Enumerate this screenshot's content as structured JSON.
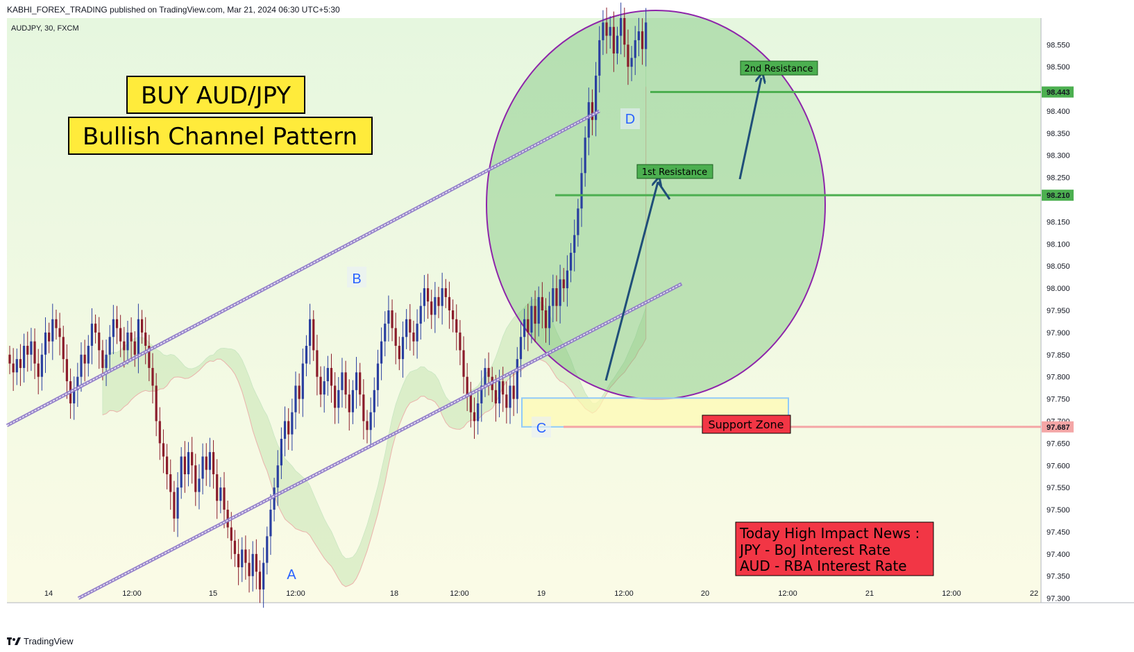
{
  "header": {
    "published": "KABHI_FOREX_TRADING published on TradingView.com, Mar 21, 2024 06:30 UTC+5:30",
    "symbol": "AUDJPY, 30, FXCM"
  },
  "footer": {
    "brand": "TradingView",
    "logo": "tradingview-logo-icon"
  },
  "colors": {
    "up": "#2a3fa0",
    "down": "#8b1c2b",
    "support": "#f4a6a6",
    "resistance": "#4caf50",
    "ellipse_fill": "#66bb6a",
    "ellipse_stroke": "#8e24aa",
    "channel": "#8f7ac9",
    "arrow": "#1f4e79",
    "label_yellow": "#ffeb3b",
    "label_red": "#f23645"
  },
  "chart_data": {
    "type": "candlestick",
    "symbol": "AUDJPY",
    "timeframe": "30",
    "y_range": [
      97.29,
      98.61
    ],
    "y_ticks": [
      "98.550",
      "98.500",
      "98.400",
      "98.350",
      "98.300",
      "98.250",
      "98.150",
      "98.100",
      "98.050",
      "98.000",
      "97.950",
      "97.900",
      "97.850",
      "97.800",
      "97.750",
      "97.700",
      "97.650",
      "97.600",
      "97.550",
      "97.500",
      "97.450",
      "97.400",
      "97.350",
      "97.300"
    ],
    "x_ticks": [
      "14",
      "12:00",
      "15",
      "12:00",
      "18",
      "12:00",
      "19",
      "12:00",
      "20",
      "12:00",
      "21",
      "12:00",
      "22"
    ],
    "price_tags": [
      {
        "value": 98.443,
        "label": "98.443",
        "color": "#4caf50"
      },
      {
        "value": 98.21,
        "label": "98.210",
        "color": "#4caf50"
      },
      {
        "value": 97.687,
        "label": "97.687",
        "color": "#f4a6a6"
      }
    ],
    "levels": [
      {
        "name": "2nd Resistance",
        "value": 98.443
      },
      {
        "name": "1st Resistance",
        "value": 98.21
      },
      {
        "name": "Support Zone",
        "value": 97.687
      }
    ],
    "channel": {
      "upper": [
        [
          0,
          97.69
        ],
        [
          165,
          98.4
        ]
      ],
      "lower": [
        [
          20,
          97.3
        ],
        [
          188,
          98.01
        ]
      ]
    },
    "points": [
      {
        "label": "A",
        "index": 70,
        "value": 97.31
      },
      {
        "label": "B",
        "index": 84,
        "value": 97.96
      },
      {
        "label": "C",
        "index": 129,
        "value": 97.66
      },
      {
        "label": "D",
        "index": 150,
        "value": 98.36
      }
    ],
    "closes": [
      97.83,
      97.81,
      97.84,
      97.82,
      97.87,
      97.85,
      97.88,
      97.83,
      97.8,
      97.85,
      97.9,
      97.88,
      97.93,
      97.91,
      97.89,
      97.84,
      97.79,
      97.74,
      97.77,
      97.8,
      97.85,
      97.83,
      97.87,
      97.92,
      97.9,
      97.86,
      97.82,
      97.85,
      97.89,
      97.93,
      97.91,
      97.88,
      97.86,
      97.9,
      97.88,
      97.85,
      97.93,
      97.9,
      97.87,
      97.82,
      97.78,
      97.7,
      97.65,
      97.62,
      97.58,
      97.54,
      97.48,
      97.55,
      97.62,
      97.58,
      97.63,
      97.6,
      97.54,
      97.57,
      97.62,
      97.59,
      97.63,
      97.58,
      97.52,
      97.55,
      97.5,
      97.46,
      97.43,
      97.4,
      97.37,
      97.41,
      97.38,
      97.35,
      97.4,
      97.36,
      97.32,
      97.38,
      97.44,
      97.5,
      97.55,
      97.6,
      97.66,
      97.7,
      97.67,
      97.72,
      97.78,
      97.75,
      97.83,
      97.87,
      97.93,
      97.86,
      97.8,
      97.76,
      97.79,
      97.82,
      97.78,
      97.73,
      97.77,
      97.81,
      97.76,
      97.72,
      97.77,
      97.81,
      97.76,
      97.7,
      97.68,
      97.72,
      97.77,
      97.83,
      97.88,
      97.92,
      97.95,
      97.91,
      97.87,
      97.84,
      97.89,
      97.93,
      97.9,
      97.88,
      97.92,
      97.96,
      98.0,
      97.97,
      97.94,
      97.98,
      97.96,
      98.0,
      97.98,
      97.95,
      97.93,
      97.9,
      97.86,
      97.8,
      97.76,
      97.72,
      97.7,
      97.74,
      97.78,
      97.82,
      97.8,
      97.77,
      97.74,
      97.79,
      97.76,
      97.73,
      97.78,
      97.75,
      97.84,
      97.89,
      97.93,
      97.9,
      97.96,
      97.92,
      97.98,
      97.95,
      97.91,
      97.96,
      98.0,
      97.96,
      98.02,
      98.0,
      98.04,
      98.08,
      98.12,
      98.18,
      98.26,
      98.34,
      98.42,
      98.38,
      98.48,
      98.56,
      98.6,
      98.57,
      98.59,
      98.53,
      98.57,
      98.61,
      98.55,
      98.5,
      98.52,
      98.56,
      98.58,
      98.54,
      98.6
    ]
  },
  "annotations": {
    "title1": "BUY AUD/JPY",
    "title2": "Bullish Channel Pattern",
    "resistance2": "2nd Resistance",
    "resistance1": "1st Resistance",
    "support": "Support Zone",
    "news_line1": "Today High Impact News :",
    "news_line2": "JPY - BoJ Interest Rate",
    "news_line3": "AUD - RBA Interest Rate",
    "point_a": "A",
    "point_b": "B",
    "point_c": "C",
    "point_d": "D"
  }
}
